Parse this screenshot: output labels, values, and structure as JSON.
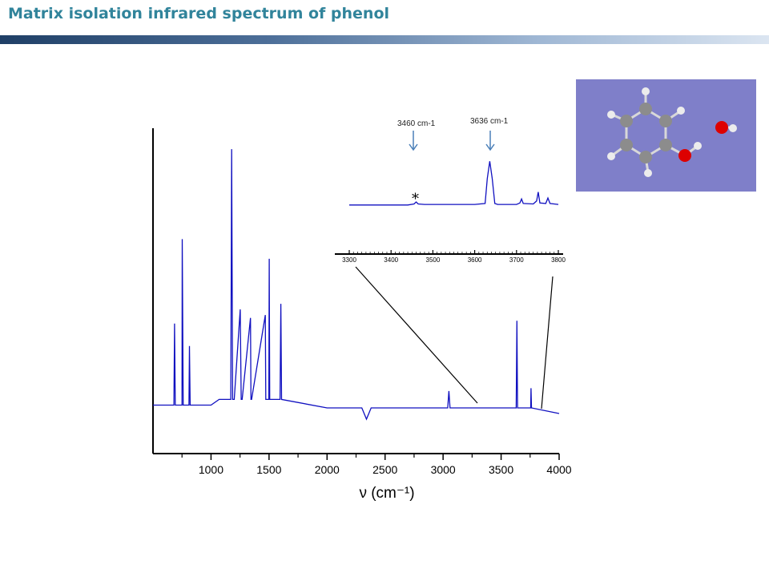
{
  "page": {
    "title": "Matrix isolation infrared spectrum of phenol"
  },
  "colors": {
    "title": "#31849B",
    "spectrum": "#1010c0",
    "molecule_background": "#7f7fc9",
    "carbon": "#8c8c8c",
    "hydrogen": "#ececec",
    "oxygen": "#dd0000"
  },
  "chart_data": [
    {
      "type": "line",
      "title": "",
      "xlabel": "ν (cm⁻¹)",
      "ylabel": "",
      "xlim": [
        500,
        4000
      ],
      "x_ticks": [
        1000,
        1500,
        2000,
        2500,
        3000,
        3500,
        4000
      ],
      "grid": false,
      "series": [
        {
          "x": [
            500,
            680,
            686,
            692,
            750,
            752,
            760,
            810,
            814,
            820,
            1000,
            1070,
            1150,
            1170,
            1178,
            1186,
            1200,
            1252,
            1260,
            1268,
            1340,
            1344,
            1350,
            1468,
            1472,
            1480,
            1498,
            1502,
            1506,
            1595,
            1602,
            1608,
            2000,
            2300,
            2340,
            2380,
            2500,
            3000,
            3040,
            3050,
            3060,
            3100,
            3500,
            3630,
            3636,
            3642,
            3650,
            3700,
            3755,
            3758,
            3762,
            4000
          ],
          "y": [
            0.03,
            0.03,
            0.32,
            0.03,
            0.03,
            0.62,
            0.03,
            0.03,
            0.24,
            0.03,
            0.03,
            0.05,
            0.05,
            0.05,
            0.94,
            0.05,
            0.05,
            0.37,
            0.05,
            0.05,
            0.34,
            0.05,
            0.05,
            0.35,
            0.05,
            0.05,
            0.05,
            0.55,
            0.05,
            0.05,
            0.39,
            0.05,
            0.02,
            0.02,
            -0.02,
            0.02,
            0.02,
            0.02,
            0.02,
            0.08,
            0.02,
            0.02,
            0.02,
            0.02,
            0.33,
            0.02,
            0.02,
            0.02,
            0.02,
            0.09,
            0.02,
            0.0
          ]
        }
      ]
    },
    {
      "type": "line",
      "title": "",
      "xlim": [
        3300,
        3800
      ],
      "x_ticks": [
        3300,
        3400,
        3500,
        3600,
        3700,
        3800
      ],
      "annotations": [
        "3460 cm-1",
        "3636 cm-1",
        "*"
      ],
      "series": [
        {
          "x": [
            3300,
            3440,
            3455,
            3460,
            3465,
            3480,
            3600,
            3625,
            3630,
            3636,
            3642,
            3648,
            3655,
            3700,
            3708,
            3712,
            3716,
            3740,
            3748,
            3752,
            3756,
            3770,
            3775,
            3780,
            3800
          ],
          "y": [
            0.02,
            0.02,
            0.04,
            0.08,
            0.04,
            0.03,
            0.03,
            0.05,
            0.55,
            0.9,
            0.55,
            0.05,
            0.03,
            0.03,
            0.06,
            0.14,
            0.05,
            0.04,
            0.1,
            0.28,
            0.06,
            0.05,
            0.16,
            0.05,
            0.03
          ]
        }
      ]
    }
  ]
}
